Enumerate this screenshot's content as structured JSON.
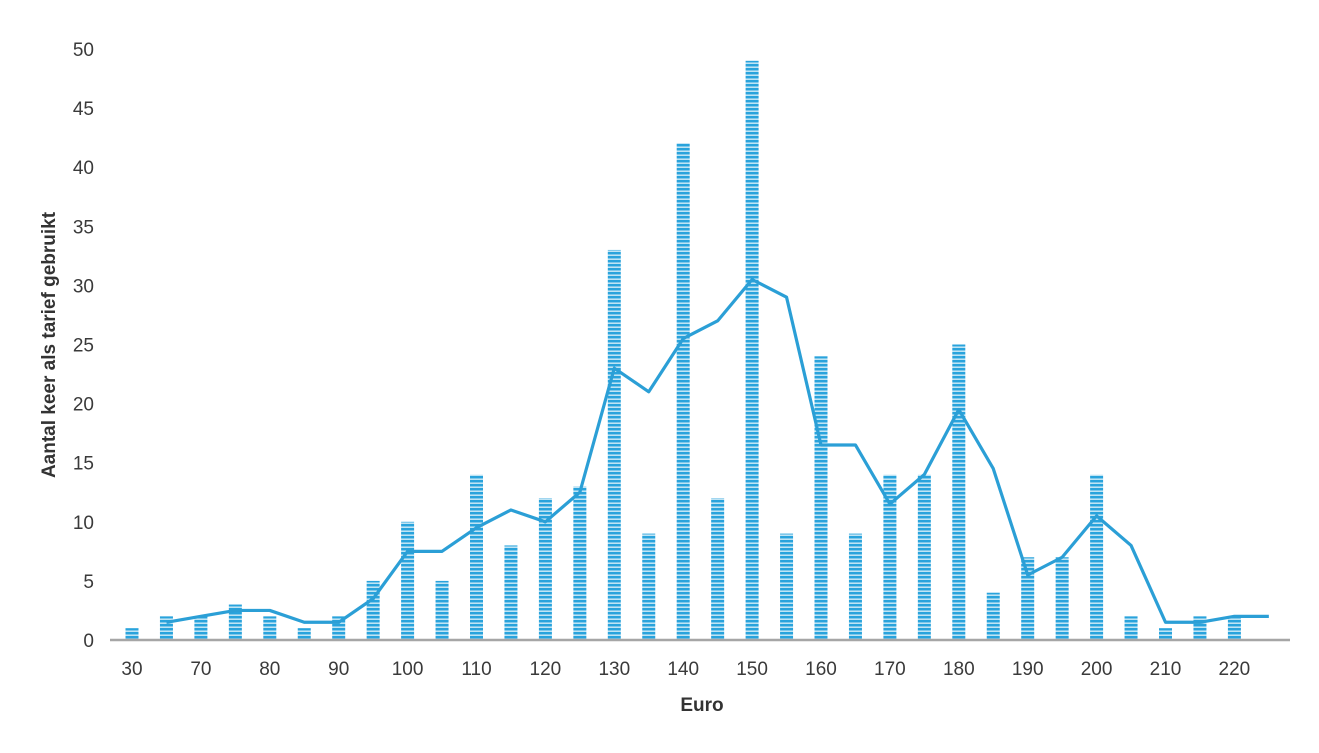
{
  "colors": {
    "bar": "#29a3dc",
    "bar_stripe": "#ffffff",
    "line": "#2b9fd6",
    "axis": "#a6a6a6",
    "text": "#3a3a3a"
  },
  "chart_data": {
    "type": "bar",
    "title": "",
    "xlabel": "Euro",
    "ylabel": "Aantal keer als tarief gebruikt",
    "ylim": [
      0,
      50
    ],
    "y_ticks": [
      0,
      5,
      10,
      15,
      20,
      25,
      30,
      35,
      40,
      45,
      50
    ],
    "grid": false,
    "legend": "none",
    "categories": [
      "30",
      "65",
      "70",
      "75",
      "80",
      "85",
      "90",
      "95",
      "100",
      "105",
      "110",
      "115",
      "120",
      "125",
      "130",
      "135",
      "140",
      "145",
      "150",
      "155",
      "160",
      "165",
      "170",
      "175",
      "180",
      "185",
      "190",
      "195",
      "200",
      "205",
      "210",
      "215",
      "220",
      "225"
    ],
    "x_tick_labels": [
      "30",
      "",
      "70",
      "",
      "80",
      "",
      "90",
      "",
      "100",
      "",
      "110",
      "",
      "120",
      "",
      "130",
      "",
      "140",
      "",
      "150",
      "",
      "160",
      "",
      "170",
      "",
      "180",
      "",
      "190",
      "",
      "200",
      "",
      "210",
      "",
      "220",
      ""
    ],
    "series": [
      {
        "type": "bar",
        "values": [
          1,
          2,
          2,
          3,
          2,
          1,
          2,
          5,
          10,
          5,
          14,
          8,
          12,
          13,
          33,
          9,
          42,
          12,
          49,
          9,
          24,
          9,
          14,
          14,
          25,
          4,
          7,
          7,
          14,
          2,
          1,
          2,
          2,
          null
        ]
      },
      {
        "type": "line",
        "values": [
          null,
          1.5,
          2,
          2.5,
          2.5,
          1.5,
          1.5,
          3.5,
          7.5,
          7.5,
          9.5,
          11,
          10,
          12.5,
          23,
          21,
          25.5,
          27,
          30.5,
          29,
          16.5,
          16.5,
          11.5,
          14,
          19.5,
          14.5,
          5.5,
          7,
          10.5,
          8,
          1.5,
          1.5,
          2,
          2
        ]
      }
    ]
  }
}
